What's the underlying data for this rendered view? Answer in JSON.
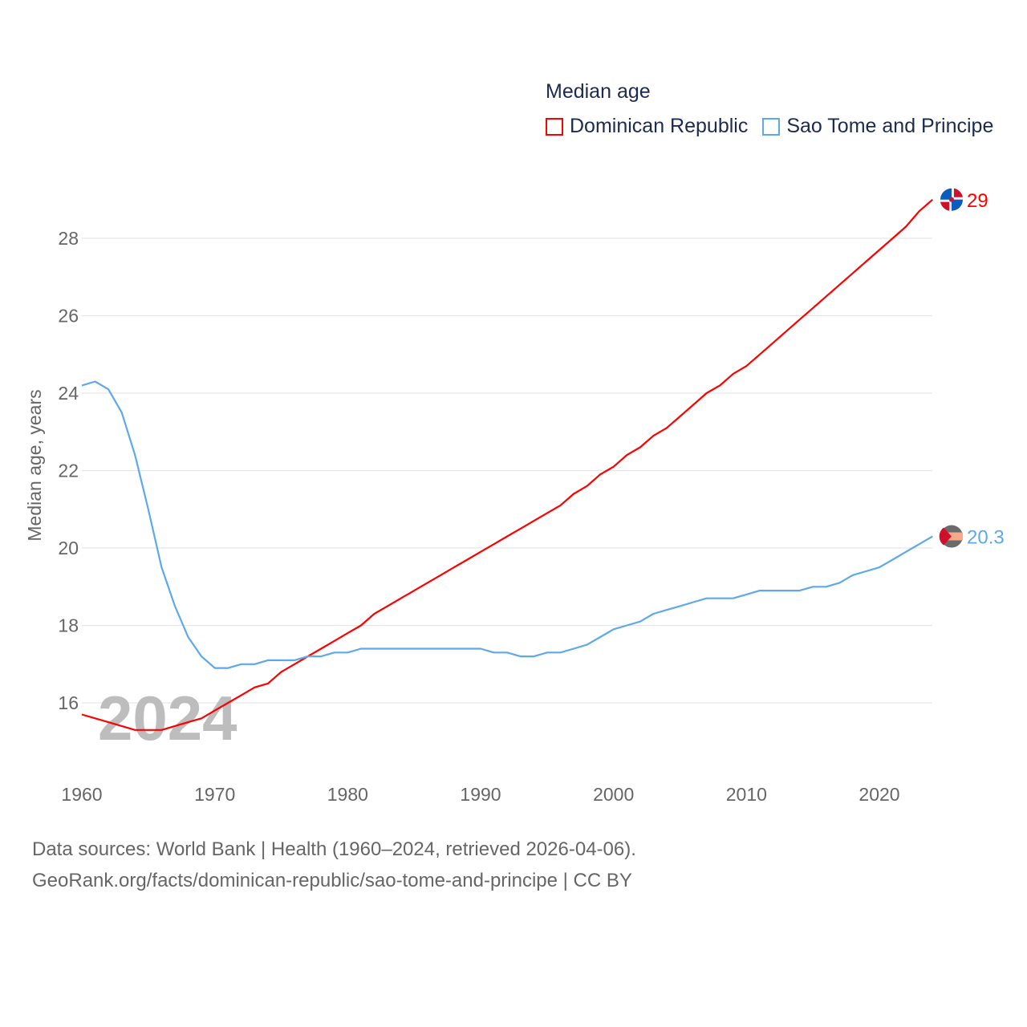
{
  "chart_data": {
    "type": "line",
    "title": "Median age",
    "xlabel": "",
    "ylabel": "Median age, years",
    "xlim": [
      1960,
      2024
    ],
    "ylim": [
      14.6,
      29.5
    ],
    "x_ticks": [
      "1960",
      "1970",
      "1980",
      "1990",
      "2000",
      "2010",
      "2020"
    ],
    "y_ticks": [
      "16",
      "18",
      "20",
      "22",
      "24",
      "26",
      "28"
    ],
    "grid": true,
    "legend_position": "top-right",
    "watermark_year": "2024",
    "x": [
      1960,
      1961,
      1962,
      1963,
      1964,
      1965,
      1966,
      1967,
      1968,
      1969,
      1970,
      1971,
      1972,
      1973,
      1974,
      1975,
      1976,
      1977,
      1978,
      1979,
      1980,
      1981,
      1982,
      1983,
      1984,
      1985,
      1986,
      1987,
      1988,
      1989,
      1990,
      1991,
      1992,
      1993,
      1994,
      1995,
      1996,
      1997,
      1998,
      1999,
      2000,
      2001,
      2002,
      2003,
      2004,
      2005,
      2006,
      2007,
      2008,
      2009,
      2010,
      2011,
      2012,
      2013,
      2014,
      2015,
      2016,
      2017,
      2018,
      2019,
      2020,
      2021,
      2022,
      2023,
      2024
    ],
    "series": [
      {
        "name": "Dominican Republic",
        "color": "#ff0000",
        "end_label": "29",
        "values": [
          15.7,
          15.6,
          15.5,
          15.4,
          15.3,
          15.3,
          15.3,
          15.4,
          15.5,
          15.6,
          15.8,
          16.0,
          16.2,
          16.4,
          16.5,
          16.8,
          17.0,
          17.2,
          17.4,
          17.6,
          17.8,
          18.0,
          18.3,
          18.5,
          18.7,
          18.9,
          19.1,
          19.3,
          19.5,
          19.7,
          19.9,
          20.1,
          20.3,
          20.5,
          20.7,
          20.9,
          21.1,
          21.4,
          21.6,
          21.9,
          22.1,
          22.4,
          22.6,
          22.9,
          23.1,
          23.4,
          23.7,
          24.0,
          24.2,
          24.5,
          24.7,
          25.0,
          25.3,
          25.6,
          25.9,
          26.2,
          26.5,
          26.8,
          27.1,
          27.4,
          27.7,
          28.0,
          28.3,
          28.7,
          29.0
        ]
      },
      {
        "name": "Sao Tome and Principe",
        "color": "#5ea8ec",
        "end_label": "20.3",
        "values": [
          24.2,
          24.3,
          24.1,
          23.5,
          22.4,
          21.0,
          19.5,
          18.5,
          17.7,
          17.2,
          16.9,
          16.9,
          17.0,
          17.0,
          17.1,
          17.1,
          17.1,
          17.2,
          17.2,
          17.3,
          17.3,
          17.4,
          17.4,
          17.4,
          17.4,
          17.4,
          17.4,
          17.4,
          17.4,
          17.4,
          17.4,
          17.3,
          17.3,
          17.2,
          17.2,
          17.3,
          17.3,
          17.4,
          17.5,
          17.7,
          17.9,
          18.0,
          18.1,
          18.3,
          18.4,
          18.5,
          18.6,
          18.7,
          18.7,
          18.7,
          18.8,
          18.9,
          18.9,
          18.9,
          18.9,
          19.0,
          19.0,
          19.1,
          19.3,
          19.4,
          19.5,
          19.7,
          19.9,
          20.1,
          20.3
        ]
      }
    ]
  },
  "footer": {
    "line1": "Data sources: World Bank | Health (1960–2024, retrieved 2026-04-06).",
    "line2": "GeoRank.org/facts/dominican-republic/sao-tome-and-principe | CC BY"
  }
}
